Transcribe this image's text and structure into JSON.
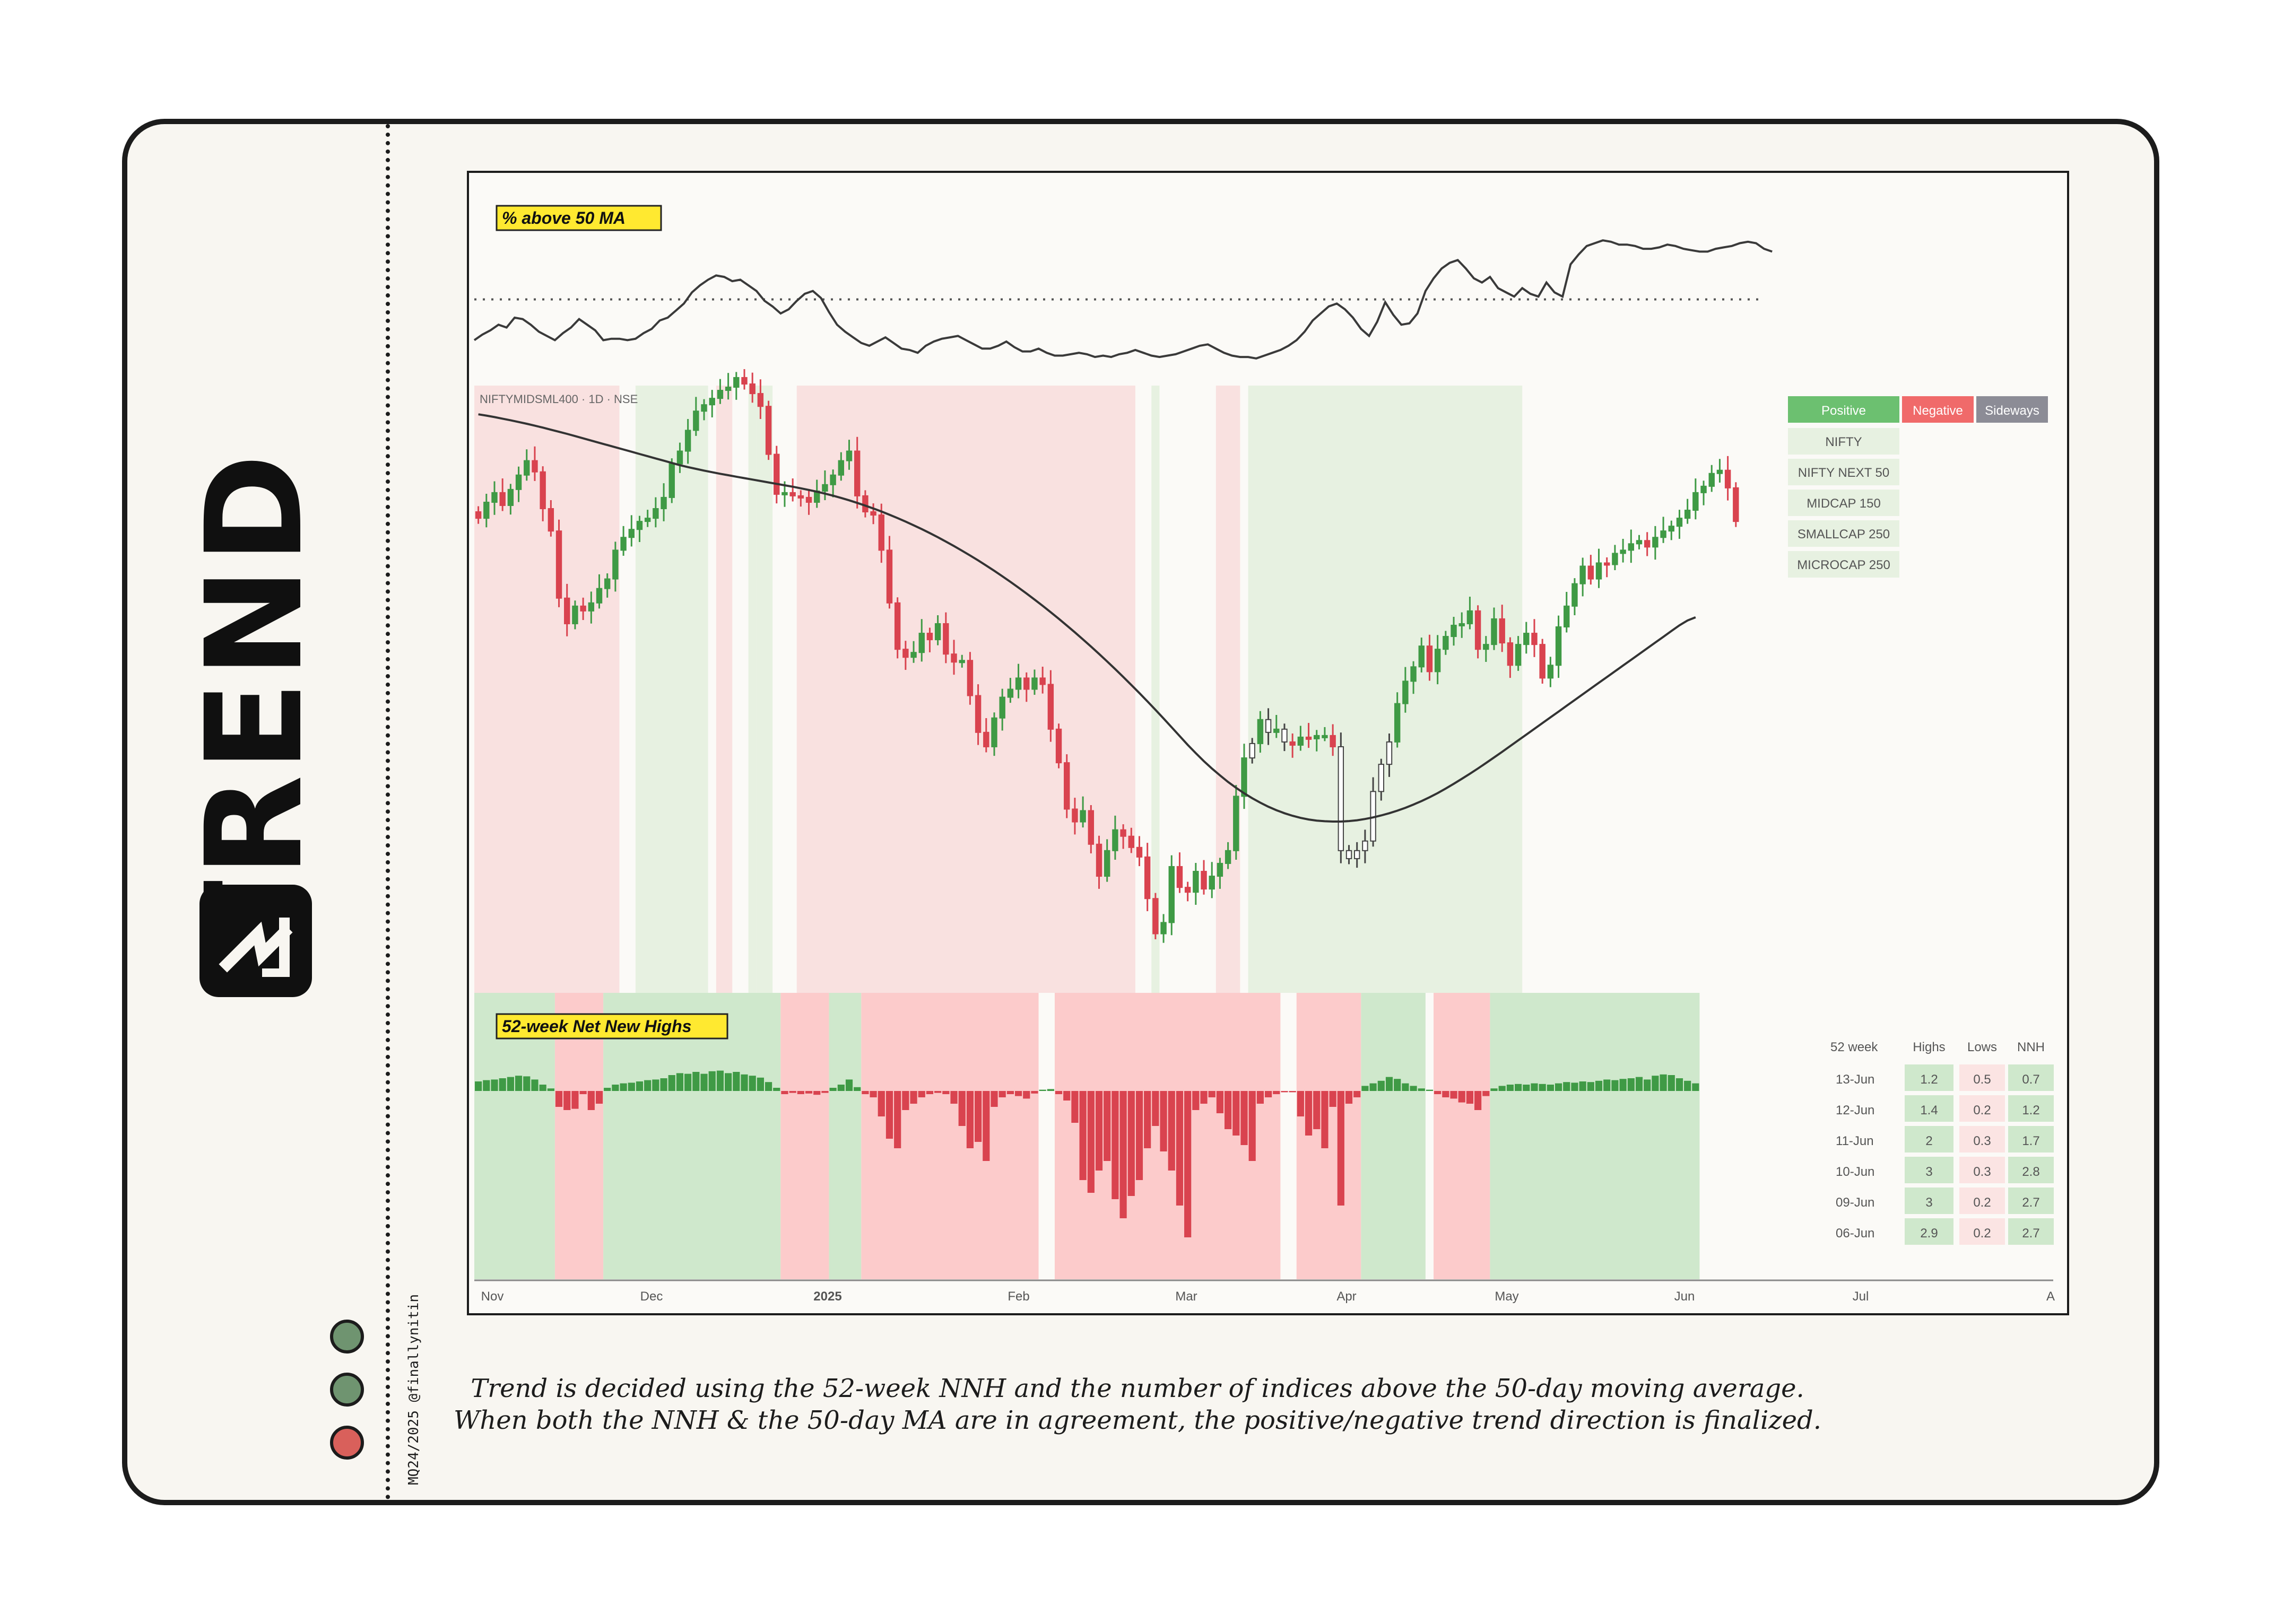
{
  "page": {
    "title": "TREND",
    "credit": "MQ24/2025 @finallynitin",
    "caption_line1": "Trend is decided using the 52-week NNH and the number of indices above the 50-day moving average.",
    "caption_line2": "When both the NNH & the 50-day MA are in agreement, the positive/negative trend direction is finalized.",
    "status_dots": [
      {
        "name": "status-dot-1",
        "color": "#6f9470"
      },
      {
        "name": "status-dot-2",
        "color": "#6f9470"
      },
      {
        "name": "status-dot-3",
        "color": "#d9605b"
      }
    ]
  },
  "colors": {
    "positive": "#6cc070",
    "negative": "#f06a6a",
    "sideways": "#8c8c96",
    "candle_up": "#3f9a45",
    "candle_down": "#d9434f",
    "green_shade": "#e7f1e1",
    "red_shade": "#f9e1e0",
    "nnh_green_shade": "#cfe8cc",
    "nnh_red_shade": "#fccbcb",
    "highlight": "#ffe930"
  },
  "chart_data": {
    "type": "line",
    "symbol_label": "NIFTYMIDSML400 · 1D · NSE",
    "x_tick_labels": [
      "Nov",
      "Dec",
      "2025",
      "Feb",
      "Mar",
      "Apr",
      "May",
      "Jun",
      "Jul",
      "A"
    ],
    "x_range": [
      0,
      160
    ],
    "top_panel": {
      "title": "% above 50 MA",
      "ylim": [
        0,
        100
      ],
      "reference_level": 50,
      "values": [
        21,
        25,
        28,
        32,
        30,
        37,
        36,
        32,
        27,
        24,
        21,
        26,
        30,
        36,
        32,
        28,
        21,
        22,
        22,
        21,
        22,
        26,
        29,
        35,
        37,
        42,
        47,
        55,
        60,
        64,
        67,
        66,
        63,
        64,
        60,
        56,
        49,
        45,
        40,
        43,
        49,
        54,
        56,
        51,
        41,
        32,
        27,
        23,
        19,
        17,
        20,
        23,
        19,
        15,
        14,
        12,
        17,
        20,
        22,
        23,
        24,
        21,
        18,
        15,
        15,
        17,
        20,
        16,
        13,
        13,
        15,
        12,
        10,
        10,
        11,
        12,
        11,
        9,
        10,
        9,
        11,
        12,
        14,
        12,
        10,
        9,
        10,
        11,
        13,
        15,
        17,
        18,
        15,
        12,
        10,
        9,
        9,
        8,
        10,
        12,
        14,
        17,
        21,
        27,
        35,
        40,
        45,
        47,
        43,
        37,
        29,
        24,
        34,
        48,
        39,
        32,
        33,
        40,
        56,
        65,
        72,
        76,
        78,
        72,
        65,
        62,
        66,
        58,
        55,
        52,
        58,
        54,
        52,
        62,
        55,
        52,
        75,
        82,
        88,
        90,
        92,
        91,
        89,
        89,
        88,
        86,
        86,
        87,
        89,
        88,
        86,
        85,
        84,
        84,
        86,
        87,
        88,
        90,
        91,
        90,
        86,
        84
      ]
    },
    "main_panel": {
      "symbol": "NIFTYMIDSML400",
      "price_range": [
        16750,
        20550
      ],
      "close": [
        19720,
        19820,
        19880,
        19800,
        19900,
        19990,
        20080,
        20010,
        19780,
        19640,
        19220,
        19060,
        19170,
        19140,
        19190,
        19280,
        19340,
        19520,
        19600,
        19650,
        19700,
        19720,
        19780,
        19850,
        20060,
        20140,
        20270,
        20390,
        20430,
        20470,
        20520,
        20540,
        20600,
        20560,
        20500,
        20420,
        20120,
        19870,
        19880,
        19860,
        19850,
        19820,
        19890,
        19930,
        19990,
        20080,
        20140,
        19860,
        19760,
        19740,
        19520,
        19190,
        18900,
        18850,
        18880,
        19000,
        18960,
        19060,
        18870,
        18820,
        18830,
        18610,
        18380,
        18290,
        18470,
        18600,
        18650,
        18720,
        18650,
        18720,
        18680,
        18400,
        18190,
        17900,
        17820,
        17890,
        17680,
        17480,
        17640,
        17770,
        17730,
        17660,
        17600,
        17340,
        17120,
        17190,
        17540,
        17410,
        17380,
        17510,
        17400,
        17480,
        17560,
        17640,
        17980,
        18220,
        18310,
        18460,
        18380,
        18400,
        18320,
        18300,
        18350,
        18340,
        18360,
        18360,
        18290,
        17640,
        17590,
        17640,
        17700,
        18010,
        18180,
        18320,
        18560,
        18700,
        18790,
        18920,
        18760,
        18900,
        18980,
        19050,
        19060,
        19140,
        18900,
        18930,
        19090,
        18940,
        18800,
        18930,
        19000,
        18930,
        18720,
        18800,
        19040,
        19170,
        19310,
        19420,
        19340,
        19440,
        19430,
        19500,
        19520,
        19560,
        19580,
        19540,
        19600,
        19640,
        19670,
        19720,
        19770,
        19880,
        19920,
        20000,
        20020,
        19910,
        19700
      ],
      "sma50": [
        20370,
        20362,
        20353,
        20343,
        20333,
        20322,
        20311,
        20299,
        20287,
        20274,
        20261,
        20248,
        20234,
        20220,
        20206,
        20192,
        20178,
        20164,
        20150,
        20136,
        20122,
        20108,
        20094,
        20080,
        20066,
        20052,
        20040,
        20029,
        20018,
        20008,
        19998,
        19989,
        19980,
        19971,
        19962,
        19953,
        19944,
        19935,
        19926,
        19917,
        19907,
        19897,
        19886,
        19874,
        19861,
        19847,
        19832,
        19816,
        19799,
        19781,
        19762,
        19742,
        19721,
        19699,
        19676,
        19652,
        19627,
        19601,
        19574,
        19546,
        19517,
        19487,
        19456,
        19424,
        19391,
        19357,
        19322,
        19286,
        19249,
        19211,
        19172,
        19132,
        19091,
        19049,
        19006,
        18962,
        18917,
        18871,
        18824,
        18776,
        18727,
        18677,
        18626,
        18574,
        18521,
        18467,
        18412,
        18357,
        18302,
        18250,
        18200,
        18154,
        18111,
        18070,
        18033,
        17999,
        17968,
        17940,
        17915,
        17893,
        17874,
        17858,
        17845,
        17835,
        17828,
        17824,
        17822,
        17822,
        17825,
        17830,
        17838,
        17848,
        17860,
        17874,
        17890,
        17908,
        17928,
        17950,
        17974,
        18000,
        18028,
        18058,
        18089,
        18121,
        18154,
        18188,
        18223,
        18258,
        18294,
        18330,
        18366,
        18402,
        18438,
        18474,
        18510,
        18546,
        18582,
        18618,
        18654,
        18690,
        18726,
        18762,
        18798,
        18834,
        18870,
        18906,
        18942,
        18978,
        19014,
        19050,
        19080,
        19100
      ]
    },
    "regime_bands": [
      {
        "from": 0,
        "to": 18,
        "trend": "negative"
      },
      {
        "from": 20,
        "to": 29,
        "trend": "positive"
      },
      {
        "from": 30,
        "to": 32,
        "trend": "negative"
      },
      {
        "from": 34,
        "to": 35,
        "trend": "positive"
      },
      {
        "from": 35,
        "to": 37,
        "trend": "positive"
      },
      {
        "from": 40,
        "to": 82,
        "trend": "negative"
      },
      {
        "from": 84,
        "to": 85,
        "trend": "positive"
      },
      {
        "from": 92,
        "to": 95,
        "trend": "negative"
      },
      {
        "from": 96,
        "to": 130,
        "trend": "positive"
      }
    ],
    "trend_legend": [
      "Positive",
      "Negative",
      "Sideways"
    ],
    "index_list": [
      "NIFTY",
      "NIFTY NEXT 50",
      "MIDCAP 150",
      "SMALLCAP 250",
      "MICROCAP 250"
    ],
    "nnh_panel": {
      "title": "52-week Net New Highs",
      "ylim": [
        -2.5,
        0.5
      ],
      "values": [
        0.15,
        0.17,
        0.18,
        0.2,
        0.22,
        0.24,
        0.23,
        0.18,
        0.1,
        0.04,
        -0.25,
        -0.3,
        -0.28,
        -0.05,
        -0.3,
        -0.2,
        0.05,
        0.1,
        0.12,
        0.13,
        0.15,
        0.17,
        0.18,
        0.2,
        0.25,
        0.28,
        0.27,
        0.3,
        0.27,
        0.31,
        0.32,
        0.28,
        0.3,
        0.26,
        0.24,
        0.21,
        0.14,
        0.05,
        -0.05,
        -0.03,
        -0.05,
        -0.04,
        -0.06,
        -0.03,
        0.05,
        0.1,
        0.18,
        0.06,
        -0.05,
        -0.1,
        -0.4,
        -0.75,
        -0.9,
        -0.3,
        -0.2,
        -0.1,
        -0.05,
        -0.03,
        -0.05,
        -0.2,
        -0.55,
        -0.9,
        -0.8,
        -1.1,
        -0.25,
        -0.1,
        -0.05,
        -0.08,
        -0.12,
        -0.04,
        0.02,
        0.03,
        -0.05,
        -0.15,
        -0.5,
        -1.4,
        -1.6,
        -1.25,
        -1.1,
        -1.7,
        -2.0,
        -1.65,
        -1.4,
        -0.9,
        -0.55,
        -0.95,
        -1.25,
        -1.8,
        -2.3,
        -0.3,
        -0.2,
        -0.1,
        -0.35,
        -0.6,
        -0.7,
        -0.85,
        -1.1,
        -0.2,
        -0.1,
        -0.05,
        -0.02,
        -0.02,
        -0.4,
        -0.7,
        -0.6,
        -0.9,
        -0.25,
        -1.8,
        -0.2,
        -0.1,
        0.08,
        0.12,
        0.16,
        0.22,
        0.19,
        0.12,
        0.08,
        0.04,
        0.02,
        -0.05,
        -0.1,
        -0.12,
        -0.18,
        -0.2,
        -0.3,
        -0.08,
        0.04,
        0.08,
        0.1,
        0.11,
        0.1,
        0.12,
        0.11,
        0.1,
        0.12,
        0.14,
        0.13,
        0.15,
        0.14,
        0.16,
        0.18,
        0.17,
        0.19,
        0.2,
        0.22,
        0.18,
        0.24,
        0.26,
        0.25,
        0.2,
        0.16,
        0.12
      ]
    },
    "nnh_table": {
      "headers": [
        "52 week",
        "Highs",
        "Lows",
        "NNH"
      ],
      "rows": [
        {
          "date": "13-Jun",
          "highs": "1.2",
          "lows": "0.5",
          "nnh": "0.7"
        },
        {
          "date": "12-Jun",
          "highs": "1.4",
          "lows": "0.2",
          "nnh": "1.2"
        },
        {
          "date": "11-Jun",
          "highs": "2",
          "lows": "0.3",
          "nnh": "1.7"
        },
        {
          "date": "10-Jun",
          "highs": "3",
          "lows": "0.3",
          "nnh": "2.8"
        },
        {
          "date": "09-Jun",
          "highs": "3",
          "lows": "0.2",
          "nnh": "2.7"
        },
        {
          "date": "06-Jun",
          "highs": "2.9",
          "lows": "0.2",
          "nnh": "2.7"
        }
      ]
    }
  }
}
